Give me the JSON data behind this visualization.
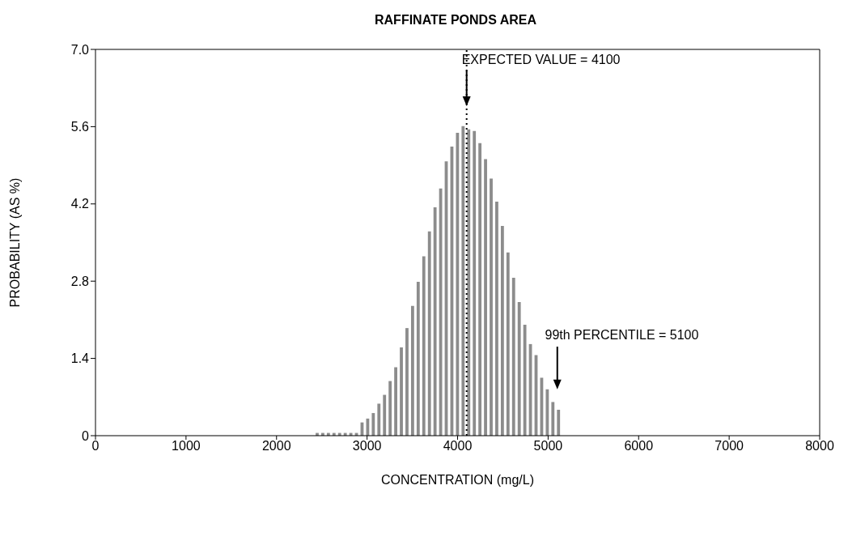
{
  "chart_data": {
    "type": "histogram",
    "title": "RAFFINATE PONDS AREA",
    "xlabel": "CONCENTRATION (mg/L)",
    "ylabel": "PROBABILITY (AS %)",
    "bins": [
      2414,
      2476,
      2538,
      2600,
      2662,
      2724,
      2786,
      2848,
      2910,
      2972,
      3034,
      3096,
      3158,
      3220,
      3282,
      3344,
      3406,
      3468,
      3530,
      3592,
      3654,
      3716,
      3778,
      3840,
      3902,
      3964,
      4026,
      4088,
      4150,
      4212,
      4274,
      4336,
      4398,
      4460,
      4522,
      4584,
      4646,
      4708,
      4770,
      4832,
      4894,
      4956,
      5018,
      5080,
      5142
    ],
    "values": [
      0.05,
      0.05,
      0.05,
      0.05,
      0.05,
      0.05,
      0.05,
      0.05,
      0.24,
      0.31,
      0.41,
      0.58,
      0.74,
      0.99,
      1.24,
      1.6,
      1.95,
      2.35,
      2.79,
      3.25,
      3.7,
      4.14,
      4.48,
      4.97,
      5.24,
      5.49,
      5.61,
      5.55,
      5.52,
      5.3,
      5.01,
      4.66,
      4.24,
      3.8,
      3.32,
      2.86,
      2.42,
      2.01,
      1.66,
      1.46,
      1.05,
      0.84,
      0.61,
      0.47
    ],
    "color": "#8c8c8c",
    "xlim": [
      0,
      8000
    ],
    "xticks": [
      0,
      1000,
      2000,
      3000,
      4000,
      5000,
      6000,
      7000,
      8000
    ],
    "ylim": [
      0,
      7
    ],
    "yticks": [
      0,
      1.4,
      2.8,
      4.2,
      5.6,
      {
        "value": 7,
        "label": "7.0"
      }
    ],
    "ref_lines": [
      {
        "axis": "x",
        "value": 4100,
        "label": "EXPECTED VALUE = 4100",
        "color": "#000000",
        "line_style": "dotted"
      }
    ],
    "annotations": [
      "99th PERCENTILE = 5100"
    ]
  }
}
